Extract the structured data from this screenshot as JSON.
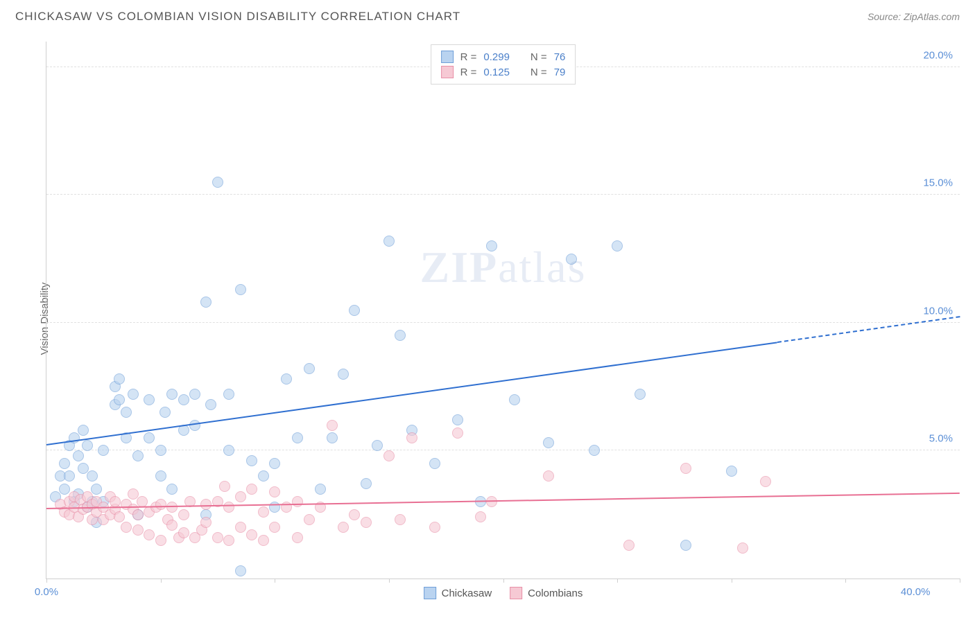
{
  "header": {
    "title": "CHICKASAW VS COLOMBIAN VISION DISABILITY CORRELATION CHART",
    "source": "Source: ZipAtlas.com"
  },
  "watermark": {
    "part1": "ZIP",
    "part2": "atlas"
  },
  "chart": {
    "type": "scatter",
    "ylabel": "Vision Disability",
    "background_color": "#ffffff",
    "grid_color": "#e0e0e0",
    "axis_color": "#cfcfcf",
    "tick_label_color": "#5b8fd6",
    "label_fontsize": 15,
    "title_fontsize": 17,
    "xlim": [
      0,
      40
    ],
    "ylim": [
      0,
      21
    ],
    "xticks": [
      0,
      5,
      10,
      15,
      20,
      25,
      30,
      35,
      40
    ],
    "xtick_labels_shown": {
      "0": "0.0%",
      "40": "40.0%"
    },
    "yticks": [
      5,
      10,
      15,
      20
    ],
    "ytick_labels": [
      "5.0%",
      "10.0%",
      "15.0%",
      "20.0%"
    ],
    "marker_size": 16,
    "marker_opacity": 0.6,
    "series": [
      {
        "id": "chickasaw",
        "label": "Chickasaw",
        "fill_color": "#b9d3f0",
        "stroke_color": "#6f9fd8",
        "line_color": "#2f6fd0",
        "line_width": 2,
        "R": "0.299",
        "N": "76",
        "regression": {
          "x1": 0,
          "y1": 5.2,
          "x2": 32,
          "y2": 9.2,
          "dash_to_x": 40,
          "dash_to_y": 10.2
        },
        "points": [
          [
            0.4,
            3.2
          ],
          [
            0.6,
            4.0
          ],
          [
            0.8,
            3.5
          ],
          [
            0.8,
            4.5
          ],
          [
            1.0,
            5.2
          ],
          [
            1.0,
            4.0
          ],
          [
            1.2,
            3.0
          ],
          [
            1.2,
            5.5
          ],
          [
            1.4,
            4.8
          ],
          [
            1.4,
            3.3
          ],
          [
            1.6,
            4.3
          ],
          [
            1.6,
            5.8
          ],
          [
            1.8,
            2.8
          ],
          [
            1.8,
            5.2
          ],
          [
            2.0,
            4.0
          ],
          [
            2.0,
            3.0
          ],
          [
            2.2,
            3.5
          ],
          [
            2.2,
            2.2
          ],
          [
            2.5,
            3.0
          ],
          [
            2.5,
            5.0
          ],
          [
            3.0,
            7.5
          ],
          [
            3.0,
            6.8
          ],
          [
            3.2,
            7.0
          ],
          [
            3.2,
            7.8
          ],
          [
            3.5,
            5.5
          ],
          [
            3.5,
            6.5
          ],
          [
            3.8,
            7.2
          ],
          [
            4.0,
            2.5
          ],
          [
            4.0,
            4.8
          ],
          [
            4.5,
            7.0
          ],
          [
            4.5,
            5.5
          ],
          [
            5.0,
            4.0
          ],
          [
            5.0,
            5.0
          ],
          [
            5.2,
            6.5
          ],
          [
            5.5,
            7.2
          ],
          [
            5.5,
            3.5
          ],
          [
            6.0,
            5.8
          ],
          [
            6.0,
            7.0
          ],
          [
            6.5,
            6.0
          ],
          [
            6.5,
            7.2
          ],
          [
            7.0,
            10.8
          ],
          [
            7.0,
            2.5
          ],
          [
            7.2,
            6.8
          ],
          [
            7.5,
            15.5
          ],
          [
            8.0,
            5.0
          ],
          [
            8.0,
            7.2
          ],
          [
            8.5,
            11.3
          ],
          [
            8.5,
            0.3
          ],
          [
            9.0,
            4.6
          ],
          [
            9.5,
            4.0
          ],
          [
            10.0,
            2.8
          ],
          [
            10.0,
            4.5
          ],
          [
            10.5,
            7.8
          ],
          [
            11.0,
            5.5
          ],
          [
            11.5,
            8.2
          ],
          [
            12.0,
            3.5
          ],
          [
            12.5,
            5.5
          ],
          [
            13.0,
            8.0
          ],
          [
            13.5,
            10.5
          ],
          [
            14.0,
            3.7
          ],
          [
            14.5,
            5.2
          ],
          [
            15.0,
            13.2
          ],
          [
            15.5,
            9.5
          ],
          [
            16.0,
            5.8
          ],
          [
            17.0,
            4.5
          ],
          [
            18.0,
            6.2
          ],
          [
            19.0,
            3.0
          ],
          [
            19.5,
            13.0
          ],
          [
            20.5,
            7.0
          ],
          [
            22.0,
            5.3
          ],
          [
            23.0,
            12.5
          ],
          [
            24.0,
            5.0
          ],
          [
            25.0,
            13.0
          ],
          [
            26.0,
            7.2
          ],
          [
            28.0,
            1.3
          ],
          [
            30.0,
            4.2
          ]
        ]
      },
      {
        "id": "colombians",
        "label": "Colombians",
        "fill_color": "#f6c9d4",
        "stroke_color": "#e88fa7",
        "line_color": "#e86f93",
        "line_width": 2,
        "R": "0.125",
        "N": "79",
        "regression": {
          "x1": 0,
          "y1": 2.7,
          "x2": 40,
          "y2": 3.3
        },
        "points": [
          [
            0.6,
            2.9
          ],
          [
            0.8,
            2.6
          ],
          [
            1.0,
            3.0
          ],
          [
            1.0,
            2.5
          ],
          [
            1.2,
            2.8
          ],
          [
            1.2,
            3.2
          ],
          [
            1.4,
            2.4
          ],
          [
            1.5,
            3.1
          ],
          [
            1.6,
            2.7
          ],
          [
            1.8,
            2.8
          ],
          [
            1.8,
            3.2
          ],
          [
            2.0,
            2.9
          ],
          [
            2.0,
            2.3
          ],
          [
            2.2,
            2.6
          ],
          [
            2.2,
            3.0
          ],
          [
            2.5,
            2.8
          ],
          [
            2.5,
            2.3
          ],
          [
            2.8,
            2.5
          ],
          [
            2.8,
            3.2
          ],
          [
            3.0,
            2.7
          ],
          [
            3.0,
            3.0
          ],
          [
            3.2,
            2.4
          ],
          [
            3.5,
            2.9
          ],
          [
            3.5,
            2.0
          ],
          [
            3.8,
            2.7
          ],
          [
            3.8,
            3.3
          ],
          [
            4.0,
            2.5
          ],
          [
            4.0,
            1.9
          ],
          [
            4.2,
            3.0
          ],
          [
            4.5,
            2.6
          ],
          [
            4.5,
            1.7
          ],
          [
            4.8,
            2.8
          ],
          [
            5.0,
            1.5
          ],
          [
            5.0,
            2.9
          ],
          [
            5.3,
            2.3
          ],
          [
            5.5,
            2.1
          ],
          [
            5.5,
            2.8
          ],
          [
            5.8,
            1.6
          ],
          [
            6.0,
            2.5
          ],
          [
            6.0,
            1.8
          ],
          [
            6.3,
            3.0
          ],
          [
            6.5,
            1.6
          ],
          [
            6.8,
            1.9
          ],
          [
            7.0,
            2.2
          ],
          [
            7.0,
            2.9
          ],
          [
            7.5,
            3.0
          ],
          [
            7.5,
            1.6
          ],
          [
            7.8,
            3.6
          ],
          [
            8.0,
            1.5
          ],
          [
            8.0,
            2.8
          ],
          [
            8.5,
            2.0
          ],
          [
            8.5,
            3.2
          ],
          [
            9.0,
            1.7
          ],
          [
            9.0,
            3.5
          ],
          [
            9.5,
            1.5
          ],
          [
            9.5,
            2.6
          ],
          [
            10.0,
            3.4
          ],
          [
            10.0,
            2.0
          ],
          [
            10.5,
            2.8
          ],
          [
            11.0,
            1.6
          ],
          [
            11.0,
            3.0
          ],
          [
            11.5,
            2.3
          ],
          [
            12.0,
            2.8
          ],
          [
            12.5,
            6.0
          ],
          [
            13.0,
            2.0
          ],
          [
            13.5,
            2.5
          ],
          [
            14.0,
            2.2
          ],
          [
            15.0,
            4.8
          ],
          [
            15.5,
            2.3
          ],
          [
            16.0,
            5.5
          ],
          [
            17.0,
            2.0
          ],
          [
            18.0,
            5.7
          ],
          [
            19.0,
            2.4
          ],
          [
            19.5,
            3.0
          ],
          [
            22.0,
            4.0
          ],
          [
            25.5,
            1.3
          ],
          [
            28.0,
            4.3
          ],
          [
            30.5,
            1.2
          ],
          [
            31.5,
            3.8
          ]
        ]
      }
    ],
    "legend_top": {
      "R_key": "R =",
      "N_key": "N ="
    },
    "legend_bottom": [
      {
        "label": "Chickasaw",
        "fill": "#b9d3f0",
        "stroke": "#6f9fd8"
      },
      {
        "label": "Colombians",
        "fill": "#f6c9d4",
        "stroke": "#e88fa7"
      }
    ]
  }
}
